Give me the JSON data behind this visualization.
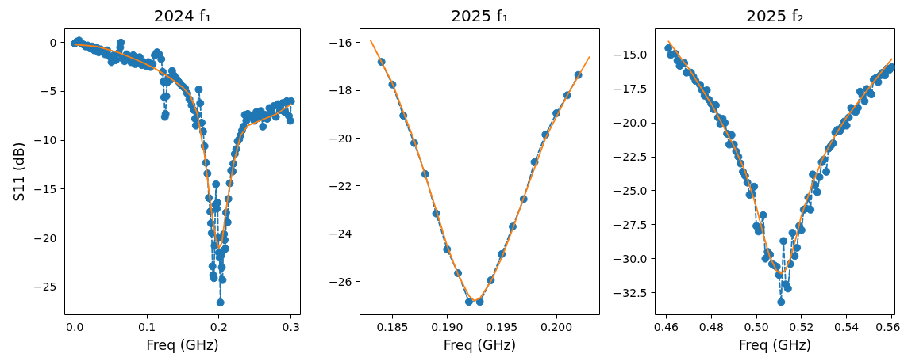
{
  "chart_data": [
    {
      "type": "line",
      "title": "2024 f₁",
      "xlabel": "Freq (GHz)",
      "ylabel": "S11 (dB)",
      "grid": false,
      "xlim": [
        -0.014,
        0.313
      ],
      "ylim": [
        -27.85,
        1.4
      ],
      "xticks": [
        {
          "value": 0,
          "label": "0.0"
        },
        0.1,
        0.2,
        0.3
      ],
      "yticks": [
        {
          "value": 0,
          "label": "0"
        },
        {
          "value": -5,
          "label": "−5"
        },
        {
          "value": -10,
          "label": "−10"
        },
        {
          "value": -15,
          "label": "−15"
        },
        {
          "value": -20,
          "label": "−20"
        },
        {
          "value": -25,
          "label": "−25"
        }
      ],
      "series": [
        {
          "color": "#1f77b4",
          "marker": "circle",
          "line_style": "dashed",
          "x": [
            0.0,
            0.003,
            0.006,
            0.009,
            0.012,
            0.015,
            0.018,
            0.021,
            0.024,
            0.027,
            0.03,
            0.033,
            0.036,
            0.039,
            0.042,
            0.045,
            0.048,
            0.051,
            0.054,
            0.057,
            0.06,
            0.063,
            0.064,
            0.066,
            0.069,
            0.072,
            0.075,
            0.078,
            0.081,
            0.084,
            0.087,
            0.09,
            0.093,
            0.096,
            0.099,
            0.102,
            0.105,
            0.108,
            0.111,
            0.114,
            0.117,
            0.12,
            0.122,
            0.123,
            0.124,
            0.125,
            0.126,
            0.127,
            0.128,
            0.13,
            0.133,
            0.135,
            0.138,
            0.141,
            0.144,
            0.147,
            0.15,
            0.153,
            0.156,
            0.159,
            0.162,
            0.165,
            0.167,
            0.168,
            0.17,
            0.172,
            0.174,
            0.176,
            0.178,
            0.18,
            0.182,
            0.184,
            0.186,
            0.188,
            0.189,
            0.19,
            0.191,
            0.192,
            0.193,
            0.194,
            0.195,
            0.196,
            0.197,
            0.198,
            0.199,
            0.2,
            0.201,
            0.202,
            0.203,
            0.204,
            0.205,
            0.206,
            0.207,
            0.208,
            0.209,
            0.21,
            0.212,
            0.213,
            0.215,
            0.217,
            0.219,
            0.22,
            0.222,
            0.224,
            0.226,
            0.228,
            0.23,
            0.232,
            0.234,
            0.236,
            0.238,
            0.24,
            0.243,
            0.246,
            0.249,
            0.252,
            0.255,
            0.258,
            0.261,
            0.264,
            0.267,
            0.27,
            0.273,
            0.276,
            0.279,
            0.282,
            0.285,
            0.288,
            0.291,
            0.294,
            0.297,
            0.299,
            0.3
          ],
          "values": [
            -0.1,
            0.1,
            0.2,
            -0.1,
            -0.2,
            -0.4,
            -0.3,
            -0.6,
            -0.4,
            -0.8,
            -0.5,
            -1.0,
            -0.7,
            -0.9,
            -1.2,
            -0.8,
            -1.4,
            -2.0,
            -1.3,
            -1.8,
            -1.1,
            -0.5,
            0.0,
            -1.6,
            -1.9,
            -1.2,
            -1.5,
            -2.0,
            -1.3,
            -2.2,
            -1.7,
            -1.5,
            -2.3,
            -2.0,
            -2.4,
            -2.0,
            -2.5,
            -2.2,
            -1.3,
            -1.0,
            -1.2,
            -1.7,
            -3.0,
            -4.0,
            -5.6,
            -7.6,
            -7.3,
            -5.5,
            -4.1,
            -3.6,
            -3.8,
            -2.9,
            -3.4,
            -3.7,
            -4.0,
            -4.3,
            -4.5,
            -4.7,
            -5.2,
            -5.8,
            -6.4,
            -6.9,
            -7.8,
            -8.5,
            -7.4,
            -4.8,
            -6.2,
            -8.2,
            -9.1,
            -10.6,
            -12.3,
            -13.4,
            -15.9,
            -17.3,
            -18.5,
            -19.5,
            -22.9,
            -23.8,
            -24.1,
            -20.8,
            -16.6,
            -14.5,
            -17.0,
            -16.4,
            -20.0,
            -21.5,
            -22.0,
            -26.6,
            -21.8,
            -23.0,
            -24.3,
            -21.3,
            -19.6,
            -20.2,
            -21.1,
            -17.4,
            -18.4,
            -16.0,
            -14.4,
            -13.1,
            -13.2,
            -12.4,
            -11.4,
            -10.9,
            -10.1,
            -9.9,
            -9.5,
            -9.0,
            -8.6,
            -7.4,
            -8.0,
            -7.3,
            -7.6,
            -7.5,
            -8.0,
            -7.1,
            -7.7,
            -7.0,
            -8.6,
            -7.4,
            -7.8,
            -6.7,
            -7.2,
            -6.5,
            -7.6,
            -6.3,
            -6.9,
            -6.2,
            -7.1,
            -6.0,
            -7.5,
            -8.0,
            -6.0
          ]
        },
        {
          "color": "#ff7f0e",
          "marker": "none",
          "line_style": "solid",
          "x": [
            0.0,
            0.03,
            0.06,
            0.09,
            0.11,
            0.13,
            0.15,
            0.16,
            0.17,
            0.18,
            0.19,
            0.196,
            0.2,
            0.204,
            0.21,
            0.22,
            0.23,
            0.24,
            0.26,
            0.28,
            0.3
          ],
          "values": [
            -0.2,
            -0.4,
            -1.0,
            -1.9,
            -2.6,
            -3.5,
            -4.6,
            -5.4,
            -7.3,
            -11.5,
            -17.5,
            -20.2,
            -21.0,
            -20.5,
            -17.0,
            -12.5,
            -9.5,
            -8.5,
            -7.9,
            -7.3,
            -6.3
          ]
        }
      ]
    },
    {
      "type": "line",
      "title": "2025 f₁",
      "xlabel": "Freq (GHz)",
      "grid": false,
      "xlim": [
        0.18203,
        0.20395
      ],
      "ylim": [
        -27.39,
        -15.42
      ],
      "xticks": [
        0.185,
        {
          "value": 0.19,
          "label": "0.190"
        },
        0.195,
        {
          "value": 0.2,
          "label": "0.200"
        }
      ],
      "yticks": [
        {
          "value": -16,
          "label": "−16"
        },
        {
          "value": -18,
          "label": "−18"
        },
        {
          "value": -20,
          "label": "−20"
        },
        {
          "value": -22,
          "label": "−22"
        },
        {
          "value": -24,
          "label": "−24"
        },
        {
          "value": -26,
          "label": "−26"
        }
      ],
      "series": [
        {
          "color": "#1f77b4",
          "marker": "circle",
          "line_style": "dashed",
          "x": [
            0.184,
            0.185,
            0.186,
            0.187,
            0.188,
            0.189,
            0.19,
            0.191,
            0.192,
            0.193,
            0.194,
            0.195,
            0.196,
            0.197,
            0.198,
            0.199,
            0.2,
            0.201,
            0.202
          ],
          "values": [
            -16.8,
            -17.75,
            -19.05,
            -20.2,
            -21.5,
            -23.15,
            -24.65,
            -25.65,
            -26.85,
            -26.85,
            -25.95,
            -24.85,
            -23.7,
            -22.55,
            -21.0,
            -19.85,
            -18.95,
            -18.2,
            -17.35
          ]
        },
        {
          "color": "#ff7f0e",
          "marker": "none",
          "line_style": "solid",
          "x": [
            0.183,
            0.185,
            0.187,
            0.189,
            0.19,
            0.191,
            0.192,
            0.1925,
            0.193,
            0.194,
            0.195,
            0.196,
            0.197,
            0.199,
            0.201,
            0.203
          ],
          "values": [
            -15.9,
            -17.7,
            -20.1,
            -23.0,
            -24.5,
            -25.7,
            -26.6,
            -26.8,
            -26.7,
            -26.0,
            -25.0,
            -23.8,
            -22.5,
            -20.0,
            -18.2,
            -16.6
          ]
        }
      ]
    },
    {
      "type": "line",
      "title": "2025 f₂",
      "xlabel": "Freq (GHz)",
      "grid": false,
      "xlim": [
        0.4551,
        0.5614
      ],
      "ylim": [
        -34.13,
        -13.08
      ],
      "xticks": [
        0.46,
        0.48,
        {
          "value": 0.5,
          "label": "0.50"
        },
        0.52,
        0.54,
        0.56
      ],
      "yticks": [
        {
          "value": -15,
          "label": "−15.0"
        },
        {
          "value": -17.5,
          "label": "−17.5"
        },
        {
          "value": -20,
          "label": "−20.0"
        },
        {
          "value": -22.5,
          "label": "−22.5"
        },
        {
          "value": -25,
          "label": "−25.0"
        },
        {
          "value": -27.5,
          "label": "−27.5"
        },
        {
          "value": -30,
          "label": "−30.0"
        },
        {
          "value": -32.5,
          "label": "−32.5"
        }
      ],
      "series": [
        {
          "color": "#1f77b4",
          "marker": "circle",
          "line_style": "dashed",
          "x": [
            0.461,
            0.462,
            0.464,
            0.465,
            0.466,
            0.468,
            0.469,
            0.471,
            0.472,
            0.473,
            0.475,
            0.476,
            0.477,
            0.478,
            0.479,
            0.48,
            0.481,
            0.482,
            0.483,
            0.484,
            0.485,
            0.486,
            0.487,
            0.488,
            0.489,
            0.49,
            0.491,
            0.492,
            0.493,
            0.494,
            0.495,
            0.496,
            0.497,
            0.498,
            0.499,
            0.5,
            0.501,
            0.502,
            0.503,
            0.504,
            0.505,
            0.506,
            0.507,
            0.508,
            0.509,
            0.51,
            0.511,
            0.512,
            0.513,
            0.514,
            0.515,
            0.516,
            0.517,
            0.518,
            0.519,
            0.52,
            0.521,
            0.522,
            0.523,
            0.524,
            0.525,
            0.526,
            0.527,
            0.528,
            0.529,
            0.53,
            0.531,
            0.532,
            0.533,
            0.534,
            0.535,
            0.536,
            0.537,
            0.538,
            0.539,
            0.54,
            0.541,
            0.542,
            0.543,
            0.544,
            0.545,
            0.546,
            0.547,
            0.548,
            0.549,
            0.55,
            0.551,
            0.552,
            0.553,
            0.554,
            0.555,
            0.556,
            0.557,
            0.558,
            0.559,
            0.56
          ],
          "values": [
            -14.5,
            -15.0,
            -14.9,
            -15.4,
            -15.8,
            -15.6,
            -16.3,
            -16.3,
            -16.6,
            -16.9,
            -17.2,
            -17.6,
            -18.0,
            -17.6,
            -18.3,
            -18.6,
            -19.0,
            -18.7,
            -19.6,
            -20.1,
            -19.7,
            -20.0,
            -20.8,
            -21.6,
            -20.9,
            -21.6,
            -22.1,
            -22.5,
            -23.0,
            -23.6,
            -23.9,
            -24.4,
            -25.3,
            -25.2,
            -24.7,
            -27.6,
            -28.0,
            -27.7,
            -26.8,
            -30.0,
            -29.5,
            -29.7,
            -30.4,
            -30.5,
            -30.6,
            -31.2,
            -33.2,
            -28.7,
            -31.9,
            -32.2,
            -30.4,
            -28.1,
            -29.8,
            -29.2,
            -27.6,
            -27.9,
            -26.4,
            -26.3,
            -25.5,
            -26.4,
            -23.8,
            -24.6,
            -25.1,
            -24.0,
            -22.9,
            -22.7,
            -23.6,
            -21.9,
            -21.7,
            -21.5,
            -20.7,
            -20.5,
            -20.6,
            -20.3,
            -19.9,
            -20.2,
            -19.6,
            -18.9,
            -19.1,
            -19.2,
            -18.9,
            -17.7,
            -18.0,
            -18.4,
            -17.5,
            -17.7,
            -17.9,
            -16.8,
            -16.7,
            -17.0,
            -16.5,
            -16.3,
            -16.5,
            -16.0,
            -16.1,
            -15.9
          ]
        },
        {
          "color": "#ff7f0e",
          "marker": "none",
          "line_style": "solid",
          "x": [
            0.461,
            0.47,
            0.48,
            0.49,
            0.495,
            0.5,
            0.503,
            0.506,
            0.509,
            0.511,
            0.513,
            0.515,
            0.518,
            0.52,
            0.525,
            0.53,
            0.535,
            0.54,
            0.55,
            0.56
          ],
          "values": [
            -14.0,
            -16.0,
            -18.6,
            -21.7,
            -23.6,
            -26.2,
            -28.2,
            -29.9,
            -30.9,
            -31.1,
            -30.8,
            -30.0,
            -28.2,
            -26.8,
            -24.4,
            -22.4,
            -20.9,
            -19.6,
            -17.4,
            -15.3
          ]
        }
      ]
    }
  ]
}
